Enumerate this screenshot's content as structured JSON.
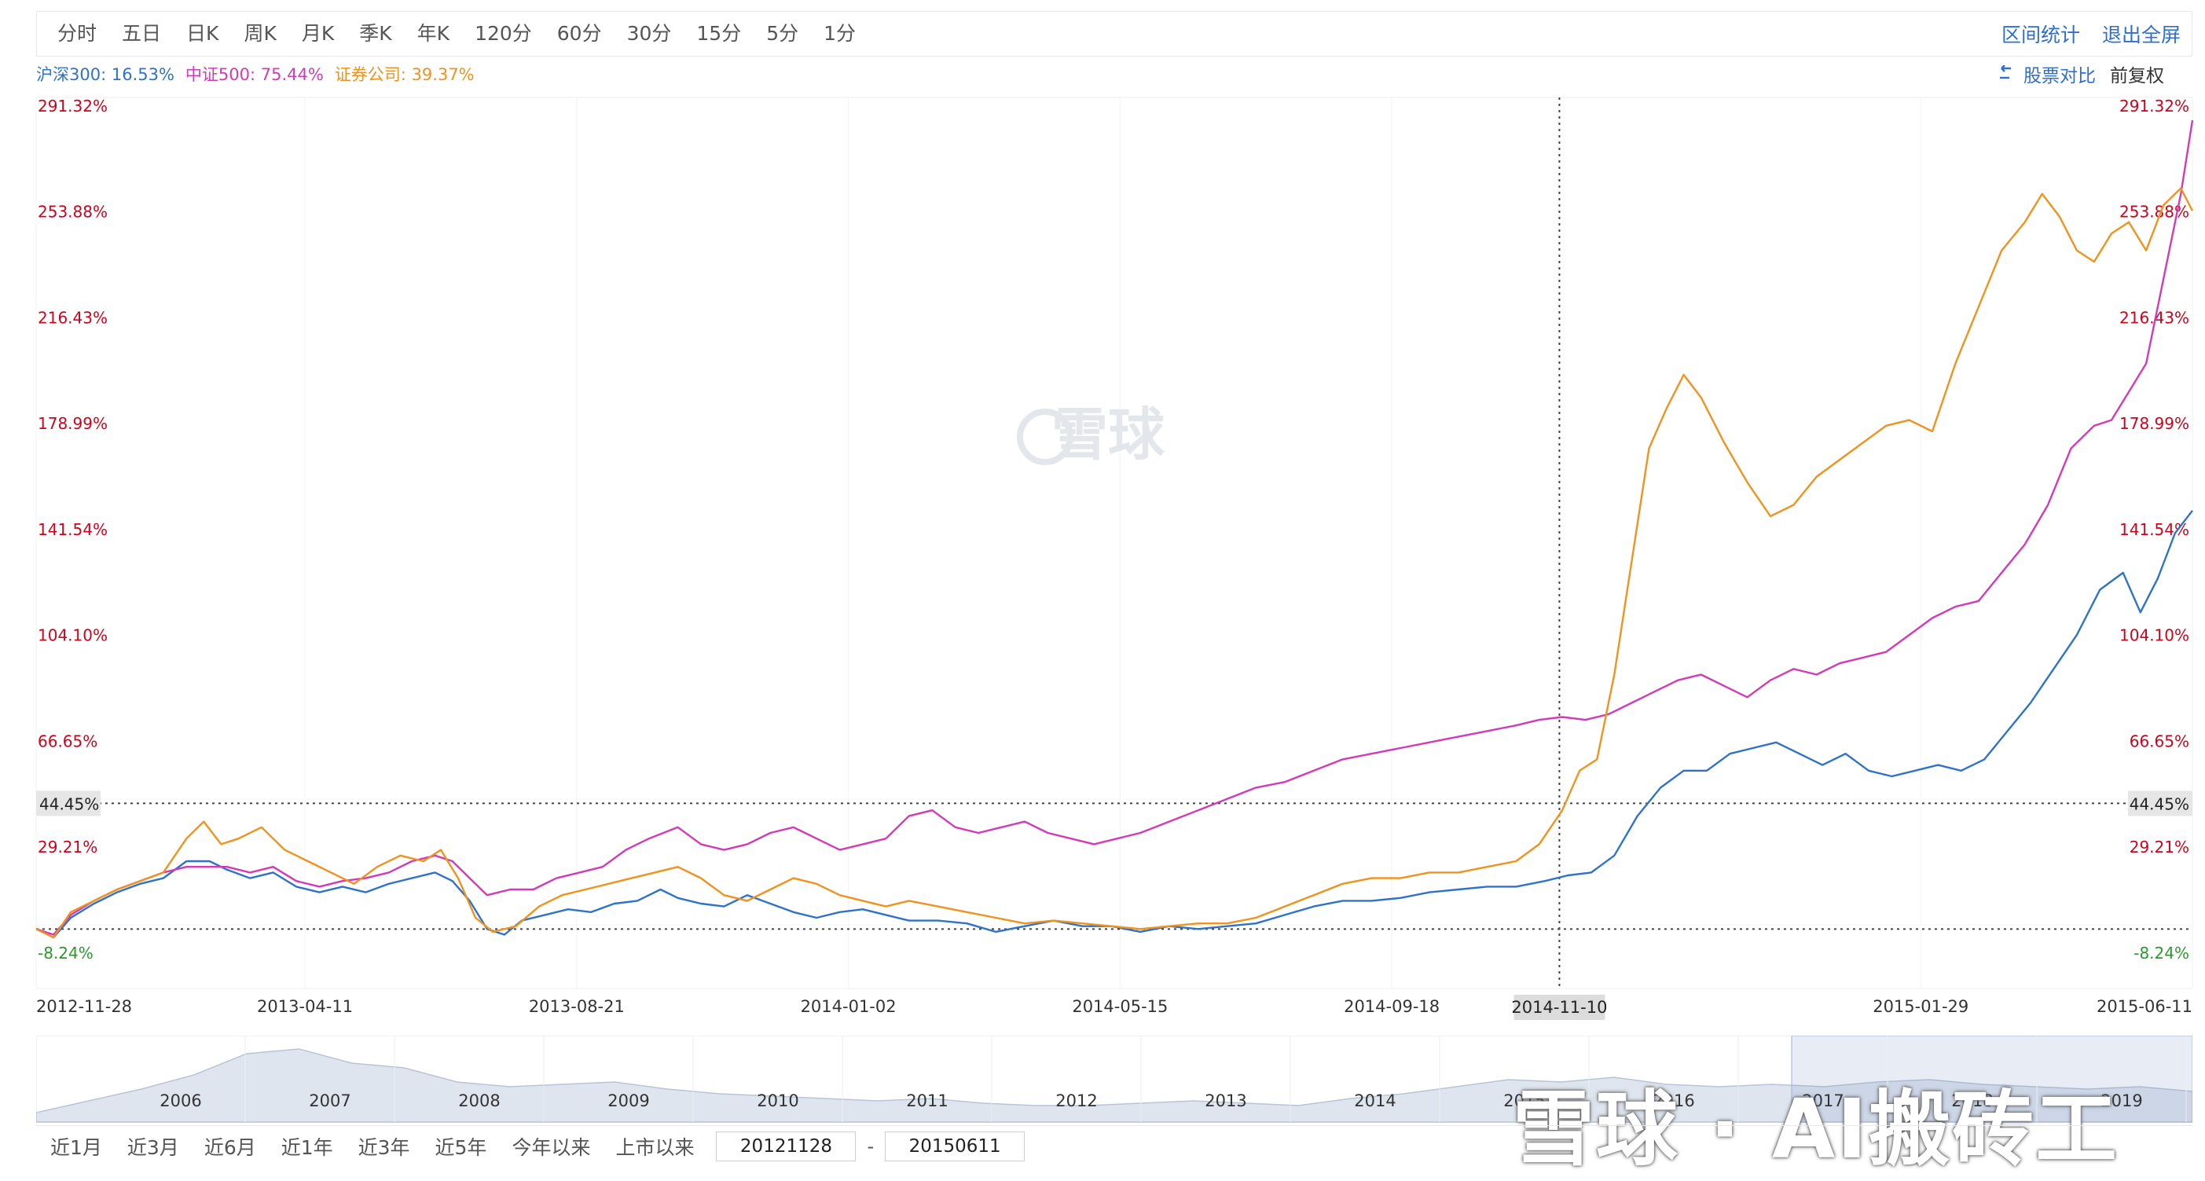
{
  "toolbar": {
    "period_tabs": [
      "分时",
      "五日",
      "日K",
      "周K",
      "月K",
      "季K",
      "年K",
      "120分",
      "60分",
      "30分",
      "15分",
      "5分",
      "1分"
    ],
    "stats_link": "区间统计",
    "exit_fullscreen": "退出全屏"
  },
  "legend": {
    "items": [
      {
        "label": "沪深300: 16.53%",
        "color": "#2f73c8"
      },
      {
        "label": "中证500: 75.44%",
        "color": "#d23bb8"
      },
      {
        "label": "证券公司: 39.37%",
        "color": "#f0921e"
      }
    ]
  },
  "controls": {
    "compare_icon": "swap-arrow-icon",
    "compare_label": "股票对比",
    "adjust_label": "前复权"
  },
  "watermark_text": "雪球",
  "chart_data": {
    "type": "line",
    "y_tick_labels": [
      "291.32%",
      "253.88%",
      "216.43%",
      "178.99%",
      "141.54%",
      "104.10%",
      "66.65%",
      "29.21%",
      "-8.24%"
    ],
    "y_ticks": [
      291.32,
      253.88,
      216.43,
      178.99,
      141.54,
      104.1,
      66.65,
      29.21,
      -8.24
    ],
    "ylim": [
      -8.24,
      291.32
    ],
    "x_tick_labels": [
      "2012-11-28",
      "2013-04-11",
      "2013-08-21",
      "2014-01-02",
      "2014-05-15",
      "2014-09-18",
      "2015-01-29",
      "2015-06-11"
    ],
    "x_ticks": [
      0,
      93,
      187,
      281,
      375,
      469,
      652,
      746
    ],
    "xlim": [
      0,
      746
    ],
    "crosshair": {
      "x_label": "2014-11-10",
      "x": 527,
      "y_label": "44.45%",
      "y": 44.45
    },
    "zero_line": 0,
    "colors": {
      "hs300": "#2f73c8",
      "zz500": "#d23bb8",
      "broker": "#f0921e",
      "axis_red": "#d0021b",
      "axis_green": "#2a9a2a"
    },
    "series": [
      {
        "name": "沪深300",
        "key": "hs300",
        "values": [
          [
            0,
            0
          ],
          [
            6,
            -3
          ],
          [
            12,
            4
          ],
          [
            20,
            9
          ],
          [
            28,
            13
          ],
          [
            36,
            16
          ],
          [
            44,
            18
          ],
          [
            52,
            24
          ],
          [
            60,
            24
          ],
          [
            66,
            21
          ],
          [
            74,
            18
          ],
          [
            82,
            20
          ],
          [
            90,
            15
          ],
          [
            98,
            13
          ],
          [
            106,
            15
          ],
          [
            114,
            13
          ],
          [
            122,
            16
          ],
          [
            130,
            18
          ],
          [
            138,
            20
          ],
          [
            144,
            17
          ],
          [
            150,
            10
          ],
          [
            156,
            0
          ],
          [
            162,
            -2
          ],
          [
            168,
            3
          ],
          [
            176,
            5
          ],
          [
            184,
            7
          ],
          [
            192,
            6
          ],
          [
            200,
            9
          ],
          [
            208,
            10
          ],
          [
            216,
            14
          ],
          [
            222,
            11
          ],
          [
            230,
            9
          ],
          [
            238,
            8
          ],
          [
            246,
            12
          ],
          [
            254,
            9
          ],
          [
            262,
            6
          ],
          [
            270,
            4
          ],
          [
            278,
            6
          ],
          [
            286,
            7
          ],
          [
            294,
            5
          ],
          [
            302,
            3
          ],
          [
            312,
            3
          ],
          [
            322,
            2
          ],
          [
            332,
            -1
          ],
          [
            342,
            1
          ],
          [
            352,
            3
          ],
          [
            362,
            1
          ],
          [
            372,
            1
          ],
          [
            382,
            -1
          ],
          [
            392,
            1
          ],
          [
            402,
            0
          ],
          [
            412,
            1
          ],
          [
            422,
            2
          ],
          [
            432,
            5
          ],
          [
            442,
            8
          ],
          [
            452,
            10
          ],
          [
            462,
            10
          ],
          [
            472,
            11
          ],
          [
            482,
            13
          ],
          [
            492,
            14
          ],
          [
            502,
            15
          ],
          [
            512,
            15
          ],
          [
            522,
            17
          ],
          [
            530,
            19
          ],
          [
            538,
            20
          ],
          [
            546,
            26
          ],
          [
            554,
            40
          ],
          [
            562,
            50
          ],
          [
            570,
            56
          ],
          [
            578,
            56
          ],
          [
            586,
            62
          ],
          [
            594,
            64
          ],
          [
            602,
            66
          ],
          [
            610,
            62
          ],
          [
            618,
            58
          ],
          [
            626,
            62
          ],
          [
            634,
            56
          ],
          [
            642,
            54
          ],
          [
            650,
            56
          ],
          [
            658,
            58
          ],
          [
            666,
            56
          ],
          [
            674,
            60
          ],
          [
            682,
            70
          ],
          [
            690,
            80
          ],
          [
            698,
            92
          ],
          [
            706,
            104
          ],
          [
            714,
            120
          ],
          [
            722,
            126
          ],
          [
            728,
            112
          ],
          [
            734,
            124
          ],
          [
            740,
            140
          ],
          [
            746,
            148
          ]
        ]
      },
      {
        "name": "中证500",
        "key": "zz500",
        "values": [
          [
            0,
            0
          ],
          [
            6,
            -2
          ],
          [
            12,
            5
          ],
          [
            20,
            10
          ],
          [
            28,
            14
          ],
          [
            36,
            17
          ],
          [
            44,
            20
          ],
          [
            52,
            22
          ],
          [
            60,
            22
          ],
          [
            66,
            22
          ],
          [
            74,
            20
          ],
          [
            82,
            22
          ],
          [
            90,
            17
          ],
          [
            98,
            15
          ],
          [
            106,
            17
          ],
          [
            114,
            18
          ],
          [
            122,
            20
          ],
          [
            130,
            24
          ],
          [
            138,
            26
          ],
          [
            144,
            24
          ],
          [
            150,
            18
          ],
          [
            156,
            12
          ],
          [
            164,
            14
          ],
          [
            172,
            14
          ],
          [
            180,
            18
          ],
          [
            188,
            20
          ],
          [
            196,
            22
          ],
          [
            204,
            28
          ],
          [
            212,
            32
          ],
          [
            222,
            36
          ],
          [
            230,
            30
          ],
          [
            238,
            28
          ],
          [
            246,
            30
          ],
          [
            254,
            34
          ],
          [
            262,
            36
          ],
          [
            270,
            32
          ],
          [
            278,
            28
          ],
          [
            286,
            30
          ],
          [
            294,
            32
          ],
          [
            302,
            40
          ],
          [
            310,
            42
          ],
          [
            318,
            36
          ],
          [
            326,
            34
          ],
          [
            334,
            36
          ],
          [
            342,
            38
          ],
          [
            350,
            34
          ],
          [
            358,
            32
          ],
          [
            366,
            30
          ],
          [
            374,
            32
          ],
          [
            382,
            34
          ],
          [
            392,
            38
          ],
          [
            402,
            42
          ],
          [
            412,
            46
          ],
          [
            422,
            50
          ],
          [
            432,
            52
          ],
          [
            442,
            56
          ],
          [
            452,
            60
          ],
          [
            462,
            62
          ],
          [
            472,
            64
          ],
          [
            482,
            66
          ],
          [
            492,
            68
          ],
          [
            502,
            70
          ],
          [
            512,
            72
          ],
          [
            520,
            74
          ],
          [
            528,
            75
          ],
          [
            536,
            74
          ],
          [
            544,
            76
          ],
          [
            552,
            80
          ],
          [
            560,
            84
          ],
          [
            568,
            88
          ],
          [
            576,
            90
          ],
          [
            584,
            86
          ],
          [
            592,
            82
          ],
          [
            600,
            88
          ],
          [
            608,
            92
          ],
          [
            616,
            90
          ],
          [
            624,
            94
          ],
          [
            632,
            96
          ],
          [
            640,
            98
          ],
          [
            648,
            104
          ],
          [
            656,
            110
          ],
          [
            664,
            114
          ],
          [
            672,
            116
          ],
          [
            680,
            126
          ],
          [
            688,
            136
          ],
          [
            696,
            150
          ],
          [
            704,
            170
          ],
          [
            712,
            178
          ],
          [
            718,
            180
          ],
          [
            724,
            190
          ],
          [
            730,
            200
          ],
          [
            736,
            230
          ],
          [
            742,
            260
          ],
          [
            746,
            286
          ]
        ]
      },
      {
        "name": "证券公司",
        "key": "broker",
        "values": [
          [
            0,
            0
          ],
          [
            6,
            -3
          ],
          [
            12,
            6
          ],
          [
            20,
            10
          ],
          [
            28,
            14
          ],
          [
            36,
            17
          ],
          [
            44,
            20
          ],
          [
            52,
            32
          ],
          [
            58,
            38
          ],
          [
            64,
            30
          ],
          [
            70,
            32
          ],
          [
            78,
            36
          ],
          [
            86,
            28
          ],
          [
            94,
            24
          ],
          [
            102,
            20
          ],
          [
            110,
            16
          ],
          [
            118,
            22
          ],
          [
            126,
            26
          ],
          [
            134,
            24
          ],
          [
            140,
            28
          ],
          [
            146,
            18
          ],
          [
            152,
            4
          ],
          [
            158,
            -1
          ],
          [
            166,
            1
          ],
          [
            174,
            8
          ],
          [
            182,
            12
          ],
          [
            190,
            14
          ],
          [
            198,
            16
          ],
          [
            206,
            18
          ],
          [
            214,
            20
          ],
          [
            222,
            22
          ],
          [
            230,
            18
          ],
          [
            238,
            12
          ],
          [
            246,
            10
          ],
          [
            254,
            14
          ],
          [
            262,
            18
          ],
          [
            270,
            16
          ],
          [
            278,
            12
          ],
          [
            286,
            10
          ],
          [
            294,
            8
          ],
          [
            302,
            10
          ],
          [
            312,
            8
          ],
          [
            322,
            6
          ],
          [
            332,
            4
          ],
          [
            342,
            2
          ],
          [
            352,
            3
          ],
          [
            362,
            2
          ],
          [
            372,
            1
          ],
          [
            382,
            0
          ],
          [
            392,
            1
          ],
          [
            402,
            2
          ],
          [
            412,
            2
          ],
          [
            422,
            4
          ],
          [
            432,
            8
          ],
          [
            442,
            12
          ],
          [
            452,
            16
          ],
          [
            462,
            18
          ],
          [
            472,
            18
          ],
          [
            482,
            20
          ],
          [
            492,
            20
          ],
          [
            502,
            22
          ],
          [
            512,
            24
          ],
          [
            520,
            30
          ],
          [
            528,
            42
          ],
          [
            534,
            56
          ],
          [
            540,
            60
          ],
          [
            546,
            90
          ],
          [
            552,
            130
          ],
          [
            558,
            170
          ],
          [
            564,
            184
          ],
          [
            570,
            196
          ],
          [
            576,
            188
          ],
          [
            584,
            172
          ],
          [
            592,
            158
          ],
          [
            600,
            146
          ],
          [
            608,
            150
          ],
          [
            616,
            160
          ],
          [
            624,
            166
          ],
          [
            632,
            172
          ],
          [
            640,
            178
          ],
          [
            648,
            180
          ],
          [
            656,
            176
          ],
          [
            664,
            200
          ],
          [
            672,
            220
          ],
          [
            680,
            240
          ],
          [
            688,
            250
          ],
          [
            694,
            260
          ],
          [
            700,
            252
          ],
          [
            706,
            240
          ],
          [
            712,
            236
          ],
          [
            718,
            246
          ],
          [
            724,
            250
          ],
          [
            730,
            240
          ],
          [
            736,
            256
          ],
          [
            742,
            262
          ],
          [
            746,
            254
          ]
        ]
      }
    ],
    "navigator": {
      "year_labels": [
        "2006",
        "2007",
        "2008",
        "2009",
        "2010",
        "2011",
        "2012",
        "2013",
        "2014",
        "2015",
        "2016",
        "2017",
        "2018",
        "2019"
      ],
      "area_values": [
        8,
        18,
        28,
        40,
        58,
        62,
        50,
        46,
        34,
        30,
        32,
        34,
        28,
        24,
        22,
        20,
        18,
        20,
        16,
        14,
        14,
        16,
        18,
        16,
        14,
        20,
        24,
        30,
        36,
        34,
        38,
        32,
        30,
        32,
        30,
        34,
        36,
        32,
        30,
        28,
        30,
        26
      ]
    }
  },
  "range": {
    "tabs": [
      "近1月",
      "近3月",
      "近6月",
      "近1年",
      "近3年",
      "近5年",
      "今年以来",
      "上市以来"
    ],
    "start_date": "20121128",
    "end_date": "20150611",
    "separator": "-"
  }
}
